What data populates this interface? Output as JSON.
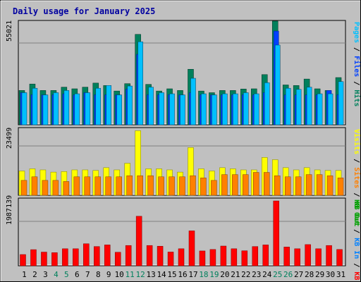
{
  "title": "Daily usage for January 2025",
  "colors": {
    "background": "#C0C0C0",
    "plot_background": "#C0C0C0",
    "title": "#0000A0",
    "hits": "#00805C",
    "files": "#0040FF",
    "pages": "#00C0FF",
    "visits": "#FFFF00",
    "sites": "#FF8000",
    "kbin": "#0080FF",
    "kbout": "#00A000",
    "kbf": "#FF0000",
    "weekend": "#00805C",
    "grid": "#808080"
  },
  "chart_data": [
    {
      "type": "bar",
      "name": "hits-files-pages",
      "ylabel_max": "55021",
      "ylim": [
        0,
        55021
      ],
      "categories": [
        "1",
        "2",
        "3",
        "4",
        "5",
        "6",
        "7",
        "8",
        "9",
        "10",
        "11",
        "12",
        "13",
        "14",
        "15",
        "16",
        "17",
        "18",
        "19",
        "20",
        "21",
        "22",
        "23",
        "24",
        "25",
        "26",
        "27",
        "28",
        "29",
        "30",
        "31"
      ],
      "legend": [
        "Pages",
        "/",
        "Files",
        "/",
        "Hits"
      ],
      "series": [
        {
          "name": "Hits",
          "values": [
            18600,
            22100,
            18600,
            18600,
            20400,
            19500,
            20400,
            22600,
            21300,
            18300,
            22300,
            49000,
            21900,
            18300,
            19500,
            18600,
            30100,
            18300,
            17400,
            18600,
            18600,
            19400,
            19500,
            27200,
            56200,
            21600,
            21300,
            24800,
            19500,
            18600,
            25600
          ]
        },
        {
          "name": "Files",
          "values": [
            17400,
            16300,
            16200,
            16300,
            16800,
            16200,
            17400,
            16300,
            16300,
            16200,
            19400,
            38200,
            16300,
            16300,
            16300,
            16200,
            17400,
            16200,
            16200,
            16200,
            16200,
            16300,
            16200,
            17400,
            50800,
            16200,
            16200,
            16200,
            16200,
            18600,
            16300
          ]
        },
        {
          "name": "Pages",
          "values": [
            17400,
            19800,
            16200,
            17400,
            18600,
            16800,
            17400,
            19800,
            21300,
            16200,
            21000,
            45000,
            20400,
            17400,
            16800,
            16200,
            25200,
            16800,
            16200,
            16800,
            16800,
            17400,
            16800,
            22800,
            43200,
            19800,
            19200,
            20400,
            16800,
            16800,
            23400
          ]
        }
      ]
    },
    {
      "type": "bar",
      "name": "visits-sites",
      "ylabel_max": "23499",
      "ylim": [
        0,
        23499
      ],
      "legend": [
        "Visits",
        "/",
        "Sites"
      ],
      "series": [
        {
          "name": "Visits",
          "values": [
            8800,
            9600,
            9200,
            8400,
            8600,
            9200,
            9200,
            9000,
            10000,
            9200,
            11600,
            23400,
            9600,
            9600,
            9200,
            8400,
            17300,
            9600,
            8800,
            10000,
            9600,
            9200,
            9200,
            13700,
            12900,
            10000,
            9200,
            10000,
            9200,
            9000,
            9000
          ]
        },
        {
          "name": "Sites",
          "values": [
            5400,
            6700,
            5400,
            5400,
            5000,
            6700,
            6700,
            6700,
            6700,
            6700,
            7100,
            7100,
            7100,
            6700,
            6700,
            6700,
            7100,
            6300,
            5400,
            7500,
            7500,
            7500,
            8300,
            8300,
            7100,
            6700,
            6700,
            7500,
            7500,
            7100,
            6300
          ]
        }
      ]
    },
    {
      "type": "bar",
      "name": "kbf",
      "ylabel_max": "1987139",
      "ylim": [
        0,
        1987139
      ],
      "legend": [
        "KB F",
        "/",
        "KB In",
        "/",
        "KB Out",
        "/",
        "Sites",
        "/",
        "Visits"
      ],
      "legend_top": [
        "KB F",
        "/",
        "KB In",
        "/",
        "KB Out"
      ],
      "series": [
        {
          "name": "KB F",
          "values": [
            345000,
            495000,
            420000,
            402000,
            522000,
            522000,
            675000,
            590000,
            640000,
            415000,
            622000,
            1518000,
            622000,
            600000,
            422000,
            522000,
            1070000,
            455000,
            500000,
            605000,
            522000,
            460000,
            590000,
            640000,
            1987139,
            575000,
            522000,
            650000,
            522000,
            622000,
            500000
          ]
        }
      ]
    }
  ],
  "x_axis": {
    "labels": [
      "1",
      "2",
      "3",
      "4",
      "5",
      "6",
      "7",
      "8",
      "9",
      "10",
      "11",
      "12",
      "13",
      "14",
      "15",
      "16",
      "17",
      "18",
      "19",
      "20",
      "21",
      "22",
      "23",
      "24",
      "25",
      "26",
      "27",
      "28",
      "29",
      "30",
      "31"
    ],
    "weekend_days": [
      "4",
      "5",
      "11",
      "12",
      "18",
      "19",
      "25",
      "26"
    ]
  },
  "legend_panel3": [
    "KB F",
    "/",
    "KB In",
    "/",
    "KB Out"
  ],
  "legend_panel2": [
    "Visits",
    "/",
    "Sites"
  ],
  "legend_panel1": [
    "Pages",
    "/",
    "Files",
    "/",
    "Hits"
  ],
  "side_labels": {
    "panel1": "Pages / Files / Hits",
    "panel2": "KB Out / Sites / Visits",
    "panel3": "KB F / KB In / KB Out"
  }
}
